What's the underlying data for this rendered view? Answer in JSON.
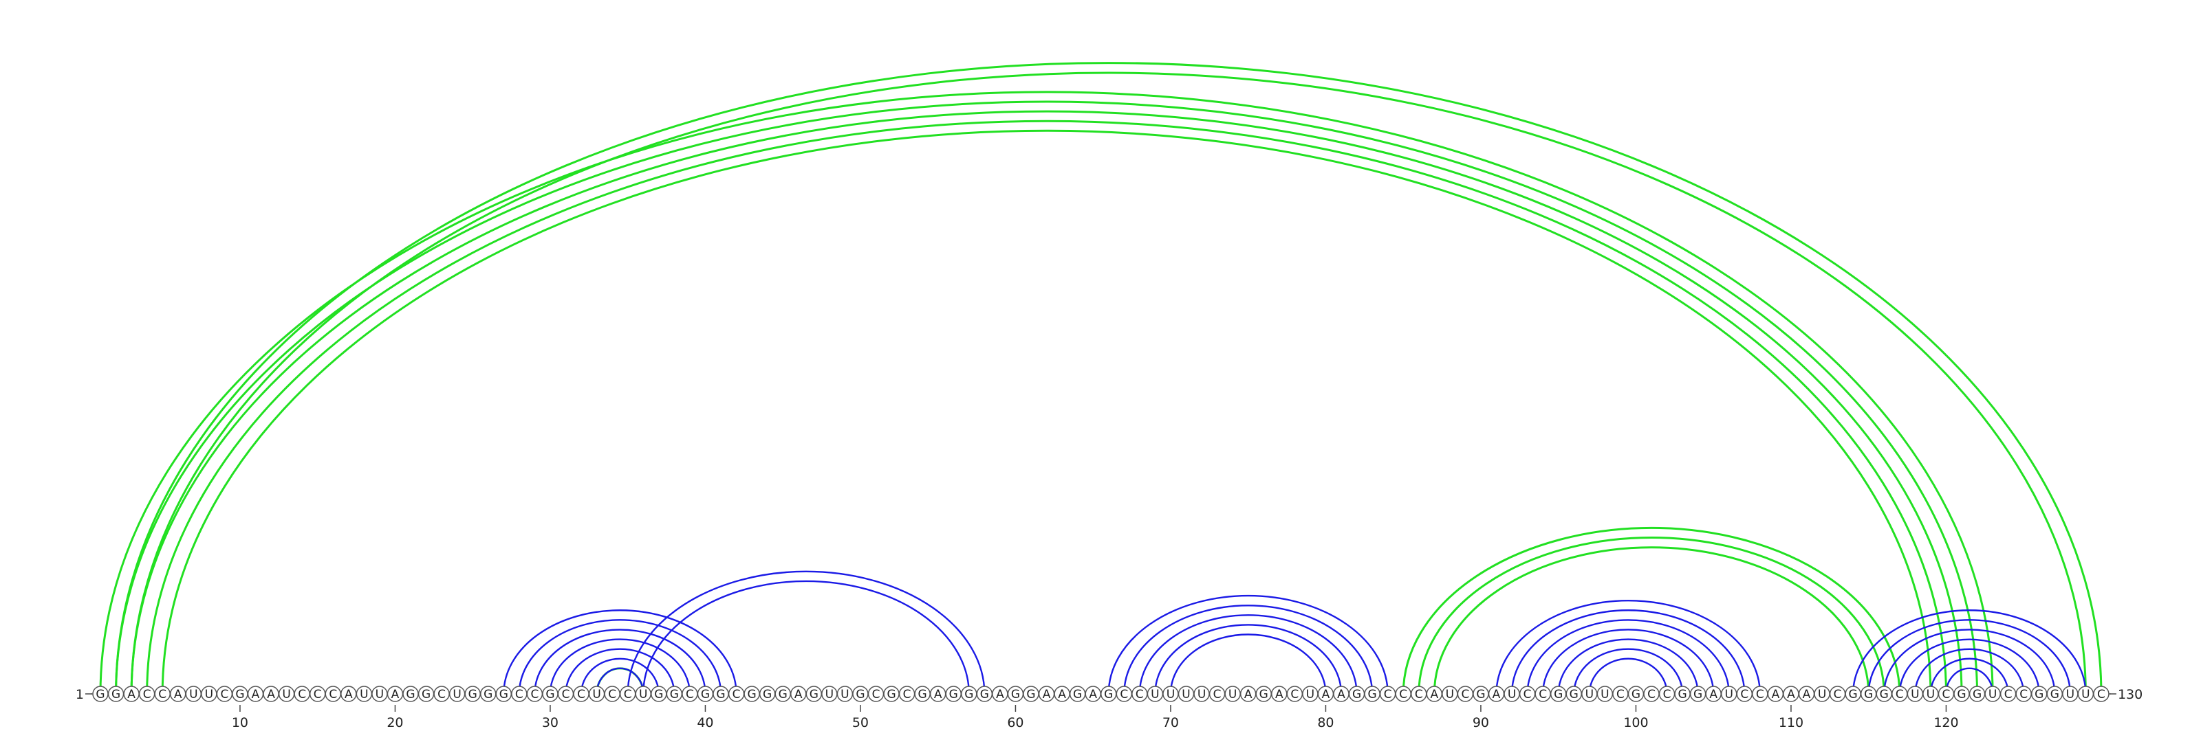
{
  "sequence": "GGACCAUUCGAAUCCCAUUAGGCUGGGCCGCCUCCUGGCGGCGGGAGUUGCGCGAGGGAGGAAGAGCCUUUUCUAGACUAAGGCCCAUCGAUCCGGUUCGCCGGAUCCAAAUCGGGCUUCGGUCCGGUUC",
  "start_label": "1",
  "end_label": "130",
  "tick_labels": [
    "10",
    "20",
    "30",
    "40",
    "50",
    "60",
    "70",
    "80",
    "90",
    "100",
    "110",
    "120"
  ],
  "colors": {
    "green": "#22e022",
    "blue": "#1a1ae6",
    "nucleotide_fill": "#ffffff",
    "nucleotide_stroke": "#555555",
    "text": "#222222"
  },
  "arc_groups": [
    {
      "name": "outer-pseudoknot",
      "color": "green",
      "pairs": [
        [
          1,
          123
        ],
        [
          2,
          122
        ],
        [
          3,
          121
        ],
        [
          4,
          120
        ],
        [
          5,
          119
        ]
      ]
    },
    {
      "name": "long-range-thin",
      "color": "green",
      "pairs": [
        [
          2,
          130
        ],
        [
          3,
          129
        ]
      ]
    },
    {
      "name": "mid-green-helix",
      "color": "green",
      "pairs": [
        [
          85,
          117
        ],
        [
          86,
          116
        ],
        [
          87,
          115
        ]
      ]
    },
    {
      "name": "small-green-hairpin",
      "color": "green",
      "pairs": [
        [
          33,
          36
        ]
      ]
    },
    {
      "name": "helix-28-42",
      "color": "blue",
      "pairs": [
        [
          27,
          42
        ],
        [
          28,
          41
        ],
        [
          29,
          40
        ],
        [
          30,
          39
        ],
        [
          31,
          38
        ],
        [
          32,
          37
        ],
        [
          33,
          36
        ]
      ]
    },
    {
      "name": "helix-35-58",
      "color": "blue",
      "pairs": [
        [
          35,
          58
        ],
        [
          36,
          57
        ]
      ]
    },
    {
      "name": "helix-66-84",
      "color": "blue",
      "pairs": [
        [
          66,
          84
        ],
        [
          67,
          83
        ],
        [
          68,
          82
        ],
        [
          69,
          81
        ],
        [
          70,
          80
        ]
      ]
    },
    {
      "name": "helix-91-108",
      "color": "blue",
      "pairs": [
        [
          91,
          108
        ],
        [
          92,
          107
        ],
        [
          93,
          106
        ],
        [
          94,
          105
        ],
        [
          95,
          104
        ],
        [
          96,
          103
        ],
        [
          97,
          102
        ]
      ]
    },
    {
      "name": "helix-114-128",
      "color": "blue",
      "pairs": [
        [
          114,
          129
        ],
        [
          115,
          128
        ],
        [
          116,
          127
        ],
        [
          117,
          126
        ],
        [
          118,
          125
        ],
        [
          119,
          124
        ],
        [
          120,
          123
        ]
      ]
    }
  ]
}
